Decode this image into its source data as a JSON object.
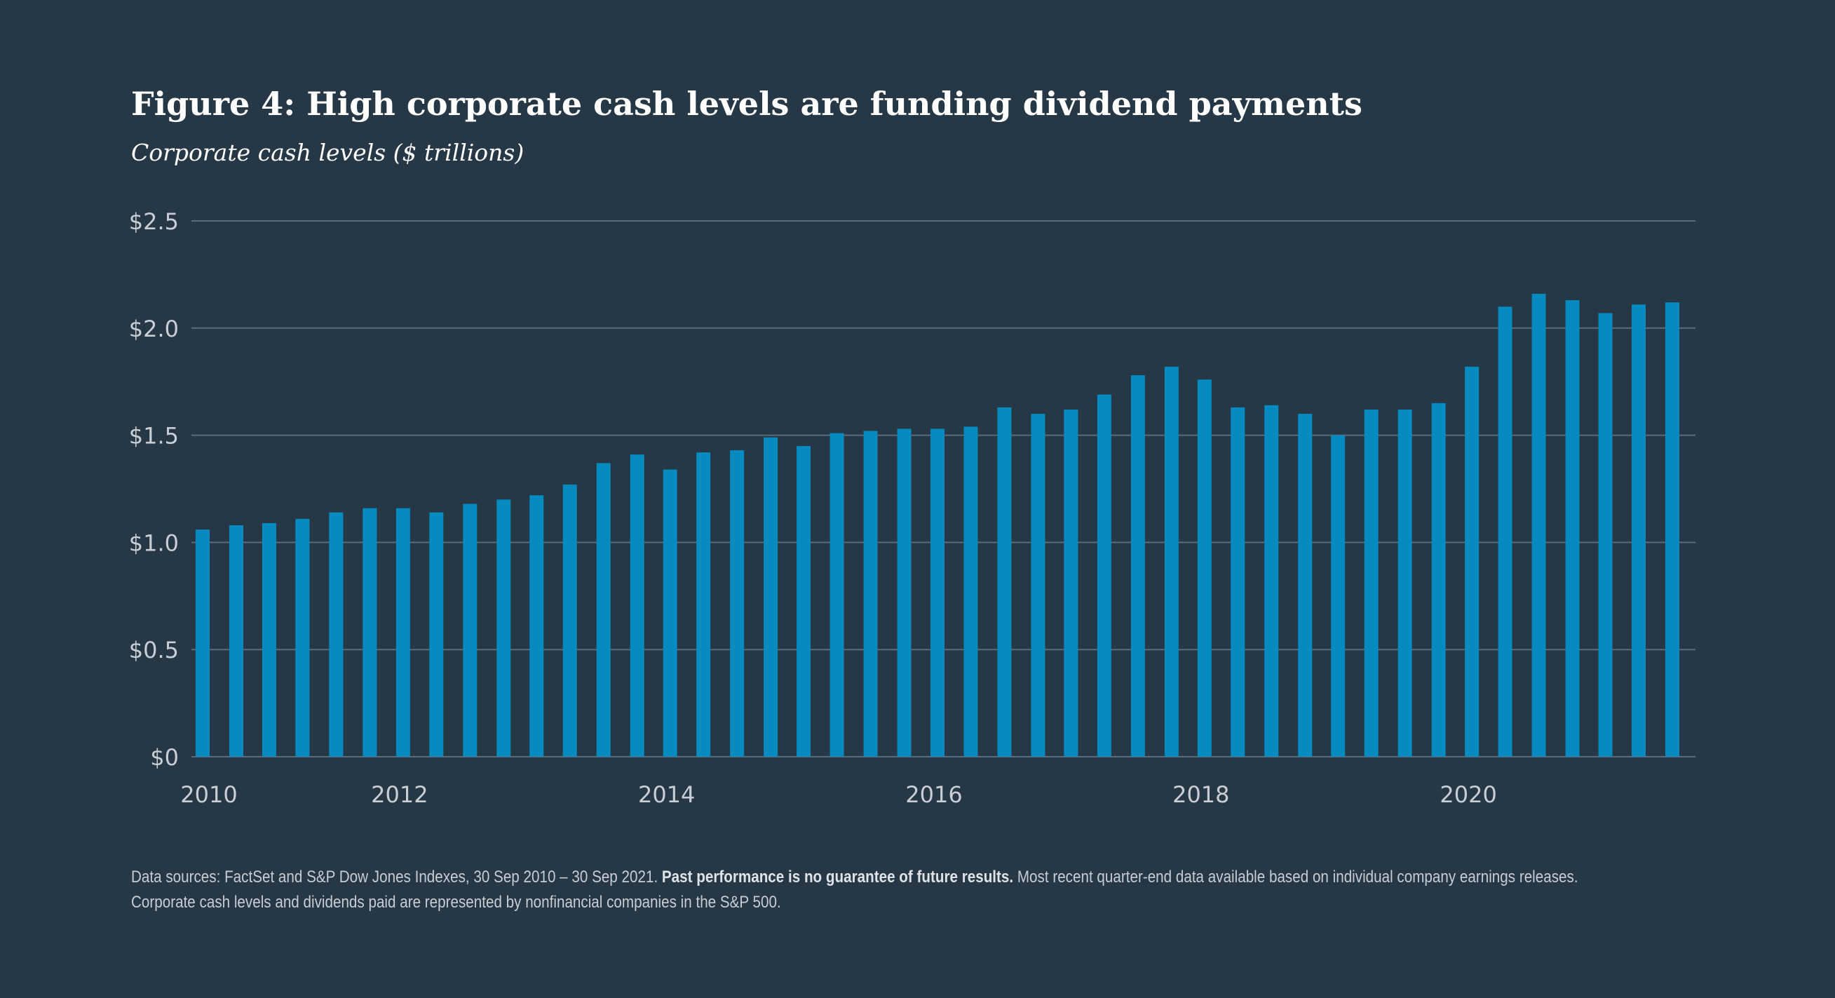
{
  "title": "Figure 4: High corporate cash levels are funding dividend payments",
  "subtitle": "Corporate cash levels ($ trillions)",
  "footnote": {
    "line1_before": "Data sources: FactSet and S&P Dow Jones Indexes, 30 Sep 2010 – 30 Sep 2021. ",
    "line1_bold": "Past performance is no guarantee of future results.",
    "line1_after": " Most recent quarter-end data available based on individual company earnings releases.",
    "line2": "Corporate cash levels and dividends paid are represented by nonfinancial companies in the S&P 500."
  },
  "colors": {
    "background": "#263746",
    "bar": "#058bbf",
    "grid": "#5a6b7a",
    "tick_text": "#c9ced4"
  },
  "chart_data": {
    "type": "bar",
    "y_tick_labels": [
      "$0",
      "$0.5",
      "$1.0",
      "$1.5",
      "$2.0",
      "$2.5"
    ],
    "y_tick_values": [
      0,
      0.5,
      1.0,
      1.5,
      2.0,
      2.5
    ],
    "ylim": [
      0,
      2.5
    ],
    "x_tick_labels": [
      "2010",
      "2012",
      "2014",
      "2016",
      "2018",
      "2020"
    ],
    "x_tick_years": [
      2010,
      2012,
      2014,
      2016,
      2018,
      2020
    ],
    "grid": true,
    "bars": [
      {
        "date": "2010-09-30",
        "value": 1.06
      },
      {
        "date": "2010-12-31",
        "value": 1.08
      },
      {
        "date": "2011-03-31",
        "value": 1.09
      },
      {
        "date": "2011-06-30",
        "value": 1.11
      },
      {
        "date": "2011-09-30",
        "value": 1.14
      },
      {
        "date": "2011-12-31",
        "value": 1.16
      },
      {
        "date": "2012-03-31",
        "value": 1.16
      },
      {
        "date": "2012-06-30",
        "value": 1.14
      },
      {
        "date": "2012-09-30",
        "value": 1.18
      },
      {
        "date": "2012-12-31",
        "value": 1.2
      },
      {
        "date": "2013-03-31",
        "value": 1.22
      },
      {
        "date": "2013-06-30",
        "value": 1.27
      },
      {
        "date": "2013-09-30",
        "value": 1.37
      },
      {
        "date": "2013-12-31",
        "value": 1.41
      },
      {
        "date": "2014-03-31",
        "value": 1.34
      },
      {
        "date": "2014-06-30",
        "value": 1.42
      },
      {
        "date": "2014-09-30",
        "value": 1.43
      },
      {
        "date": "2014-12-31",
        "value": 1.49
      },
      {
        "date": "2015-03-31",
        "value": 1.45
      },
      {
        "date": "2015-06-30",
        "value": 1.51
      },
      {
        "date": "2015-09-30",
        "value": 1.52
      },
      {
        "date": "2015-12-31",
        "value": 1.53
      },
      {
        "date": "2016-03-31",
        "value": 1.53
      },
      {
        "date": "2016-06-30",
        "value": 1.54
      },
      {
        "date": "2016-09-30",
        "value": 1.63
      },
      {
        "date": "2016-12-31",
        "value": 1.6
      },
      {
        "date": "2017-03-31",
        "value": 1.62
      },
      {
        "date": "2017-06-30",
        "value": 1.69
      },
      {
        "date": "2017-09-30",
        "value": 1.78
      },
      {
        "date": "2017-12-31",
        "value": 1.82
      },
      {
        "date": "2018-03-31",
        "value": 1.76
      },
      {
        "date": "2018-06-30",
        "value": 1.63
      },
      {
        "date": "2018-09-30",
        "value": 1.64
      },
      {
        "date": "2018-12-31",
        "value": 1.6
      },
      {
        "date": "2019-03-31",
        "value": 1.5
      },
      {
        "date": "2019-06-30",
        "value": 1.62
      },
      {
        "date": "2019-09-30",
        "value": 1.62
      },
      {
        "date": "2019-12-31",
        "value": 1.65
      },
      {
        "date": "2020-03-31",
        "value": 1.82
      },
      {
        "date": "2020-06-30",
        "value": 2.1
      },
      {
        "date": "2020-09-30",
        "value": 2.16
      },
      {
        "date": "2020-12-31",
        "value": 2.13
      },
      {
        "date": "2021-03-31",
        "value": 2.07
      },
      {
        "date": "2021-06-30",
        "value": 2.11
      },
      {
        "date": "2021-09-30",
        "value": 2.12
      }
    ]
  }
}
